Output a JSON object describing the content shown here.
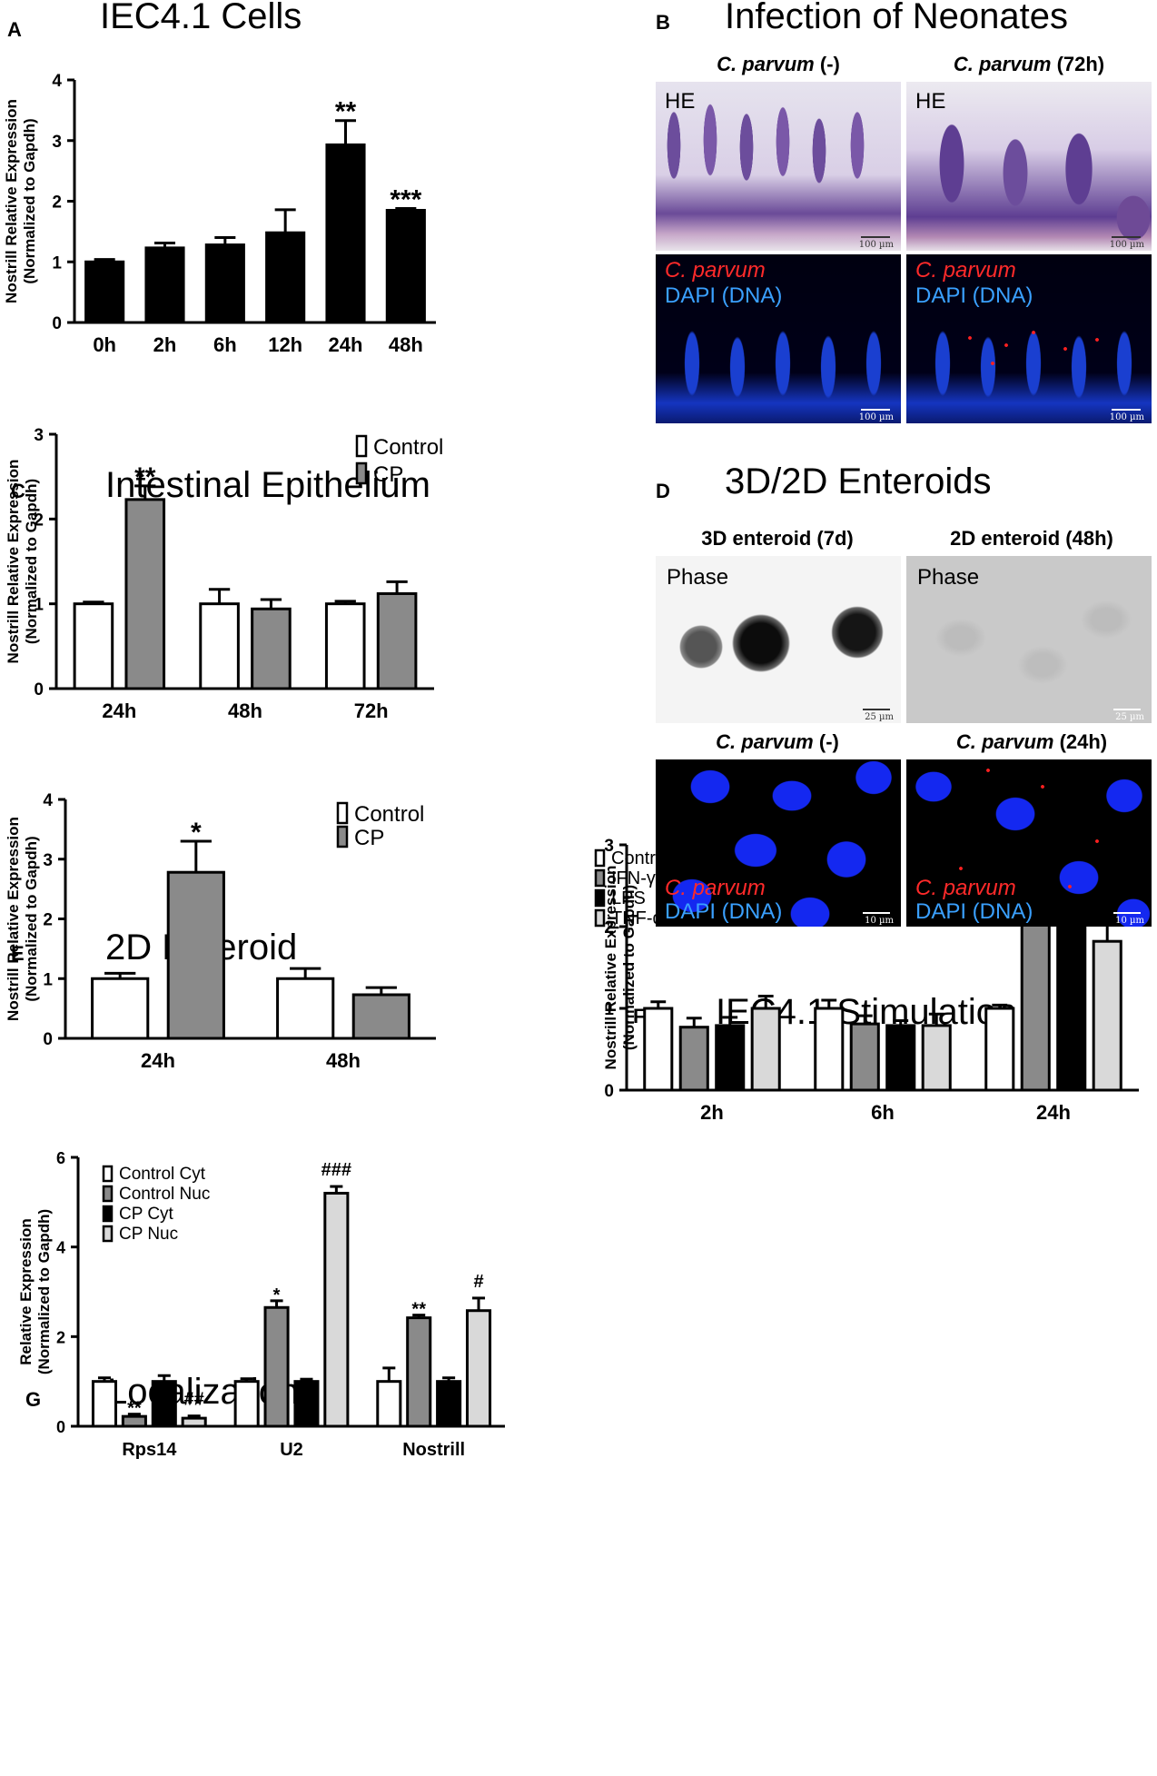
{
  "panels": {
    "A": {
      "letter": "A",
      "title": "IEC4.1 Cells"
    },
    "B": {
      "letter": "B",
      "title": "Infection of Neonates",
      "col1": {
        "name": "C. parvum",
        "suffix": " (-)"
      },
      "col2": {
        "name": "C. parvum",
        "suffix": " (72h)"
      },
      "he_label": "HE",
      "stain_red": "C. parvum",
      "stain_blue": "DAPI (DNA)",
      "scale": "100 µm"
    },
    "C": {
      "letter": "C",
      "title": "Intestinal Epithelium"
    },
    "D": {
      "letter": "D",
      "title": "3D/2D Enteroids",
      "col1": "3D enteroid (7d)",
      "col2": "2D enteroid (48h)",
      "phase": "Phase",
      "row2col1": {
        "name": "C. parvum",
        "suffix": " (-)"
      },
      "row2col2": {
        "name": "C. parvum",
        "suffix": " (24h)"
      },
      "stain_red": "C. parvum",
      "stain_blue": "DAPI (DNA)",
      "scale_top": "25 µm",
      "scale_bottom": "10 µm"
    },
    "E": {
      "letter": "E",
      "title": "2D Enteroid"
    },
    "F": {
      "letter": "F",
      "title": "IEC4.1 Stimulation"
    },
    "G": {
      "letter": "G",
      "title": "Localization"
    }
  },
  "chart_data": [
    {
      "id": "A",
      "type": "bar",
      "ylabel": "Nostrill Relative Expression",
      "ylabel2": "(Normalized to Gapdh)",
      "ylim": [
        0,
        4
      ],
      "yticks": [
        "0",
        "1",
        "2",
        "3",
        "4"
      ],
      "categories": [
        "0h",
        "2h",
        "6h",
        "12h",
        "24h",
        "48h"
      ],
      "series": [
        {
          "values": [
            1.0,
            1.23,
            1.28,
            1.48,
            2.93,
            1.85
          ],
          "errors": [
            0.04,
            0.08,
            0.12,
            0.38,
            0.4,
            0.03
          ],
          "color": "#000000"
        }
      ],
      "annotations": [
        "",
        "",
        "",
        "",
        "**",
        "***"
      ]
    },
    {
      "id": "C",
      "type": "bar",
      "ylabel": "Nostrill Relative Expression",
      "ylabel2": "(Normalized to Gapdh)",
      "ylim": [
        0,
        3
      ],
      "yticks": [
        "0",
        "1",
        "2",
        "3"
      ],
      "categories": [
        "24h",
        "48h",
        "72h"
      ],
      "legend": [
        "Control",
        "CP"
      ],
      "series": [
        {
          "name": "Control",
          "values": [
            1.0,
            1.0,
            1.0
          ],
          "errors": [
            0.02,
            0.17,
            0.03
          ],
          "color": "#ffffff"
        },
        {
          "name": "CP",
          "values": [
            2.23,
            0.94,
            1.12
          ],
          "errors": [
            0.16,
            0.11,
            0.14
          ],
          "color": "#8a8a8a"
        }
      ],
      "annotations": [
        [
          "",
          "**"
        ],
        [
          "",
          ""
        ],
        [
          "",
          ""
        ]
      ]
    },
    {
      "id": "E",
      "type": "bar",
      "ylabel": "Nostrill Relative Expression",
      "ylabel2": "(Normalized to Gapdh)",
      "ylim": [
        0,
        4
      ],
      "yticks": [
        "0",
        "1",
        "2",
        "3",
        "4"
      ],
      "categories": [
        "24h",
        "48h"
      ],
      "legend": [
        "Control",
        "CP"
      ],
      "series": [
        {
          "name": "Control",
          "values": [
            1.0,
            1.0
          ],
          "errors": [
            0.09,
            0.17
          ],
          "color": "#ffffff"
        },
        {
          "name": "CP",
          "values": [
            2.78,
            0.73
          ],
          "errors": [
            0.52,
            0.12
          ],
          "color": "#8a8a8a"
        }
      ],
      "annotations": [
        [
          "",
          "*"
        ],
        [
          "",
          ""
        ]
      ]
    },
    {
      "id": "F",
      "type": "bar",
      "ylabel": "Nostrill Relative Expression",
      "ylabel2": "(Normalized to Gapdh)",
      "ylim": [
        0,
        3
      ],
      "yticks": [
        "0",
        "1",
        "2",
        "3"
      ],
      "categories": [
        "2h",
        "6h",
        "24h"
      ],
      "legend": [
        "Control",
        "IFN-γ",
        "LPS",
        "TNF-α"
      ],
      "series": [
        {
          "name": "Control",
          "values": [
            1.0,
            1.0,
            1.0
          ],
          "errors": [
            0.08,
            0.1,
            0.04
          ],
          "color": "#ffffff"
        },
        {
          "name": "IFN-γ",
          "values": [
            0.77,
            0.81,
            2.09
          ],
          "errors": [
            0.11,
            0.1,
            0.34
          ],
          "color": "#8a8a8a"
        },
        {
          "name": "LPS",
          "values": [
            0.79,
            0.79,
            2.07
          ],
          "errors": [
            0.1,
            0.06,
            0.33
          ],
          "color": "#000000"
        },
        {
          "name": "TNF-α",
          "values": [
            1.0,
            0.79,
            1.82
          ],
          "errors": [
            0.15,
            0.14,
            0.26
          ],
          "color": "#d9d9d9"
        }
      ],
      "annotations": [
        [
          "",
          "",
          "",
          ""
        ],
        [
          "",
          "",
          "",
          ""
        ],
        [
          "",
          "*",
          "*",
          "*"
        ]
      ]
    },
    {
      "id": "G",
      "type": "bar",
      "ylabel": "Relative Expression",
      "ylabel2": "(Normalized to Gapdh)",
      "ylim": [
        0,
        6
      ],
      "yticks": [
        "0",
        "2",
        "4",
        "6"
      ],
      "categories": [
        "Rps14",
        "U2",
        "Nostrill"
      ],
      "legend": [
        "Control Cyt",
        "Control Nuc",
        "CP Cyt",
        "CP Nuc"
      ],
      "series": [
        {
          "name": "Control Cyt",
          "values": [
            1.0,
            1.0,
            1.0
          ],
          "errors": [
            0.08,
            0.06,
            0.3
          ],
          "color": "#ffffff"
        },
        {
          "name": "Control Nuc",
          "values": [
            0.22,
            2.65,
            2.42
          ],
          "errors": [
            0.05,
            0.15,
            0.06
          ],
          "color": "#8a8a8a"
        },
        {
          "name": "CP Cyt",
          "values": [
            1.0,
            1.0,
            1.0
          ],
          "errors": [
            0.13,
            0.05,
            0.08
          ],
          "color": "#000000"
        },
        {
          "name": "CP Nuc",
          "values": [
            0.18,
            5.2,
            2.58
          ],
          "errors": [
            0.05,
            0.15,
            0.28
          ],
          "color": "#d9d9d9"
        }
      ],
      "annotations": [
        [
          "",
          "**",
          "",
          "##"
        ],
        [
          "",
          "*",
          "",
          "###"
        ],
        [
          "",
          "**",
          "",
          "#"
        ]
      ]
    }
  ]
}
